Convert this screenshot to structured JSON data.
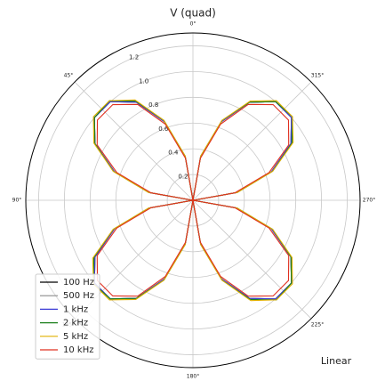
{
  "chart_data": {
    "type": "polar",
    "title": "V (quad)",
    "annotation": "Linear",
    "x": [
      0,
      10,
      20,
      30,
      40,
      50,
      60,
      70,
      80,
      90,
      100,
      110,
      120,
      130,
      140,
      150,
      160,
      170,
      180,
      190,
      200,
      210,
      220,
      230,
      240,
      250,
      260,
      270,
      280,
      290,
      300,
      310,
      320,
      330,
      340,
      350
    ],
    "rlim": [
      0,
      1.3
    ],
    "rticks": [
      0.2,
      0.4,
      0.6,
      0.8,
      {
        "value": 1,
        "label": "1.0"
      },
      1.2
    ],
    "thetaticks": [
      {
        "value": 0,
        "label": "0°"
      },
      {
        "value": 45,
        "label": "45°"
      },
      {
        "value": 90,
        "label": "90°"
      },
      {
        "value": 135,
        "label": "135°"
      },
      {
        "value": 180,
        "label": "180°"
      },
      {
        "value": 225,
        "label": "225°"
      },
      {
        "value": 270,
        "label": "270°"
      },
      {
        "value": 315,
        "label": "315°"
      }
    ],
    "grid": true,
    "legend": "lower left",
    "series": [
      {
        "name": "100 Hz",
        "color": "#000000",
        "values": [
          0,
          0.34,
          0.65,
          0.88,
          1.0,
          1.0,
          0.88,
          0.65,
          0.34,
          0,
          0.34,
          0.65,
          0.88,
          1.0,
          1.0,
          0.88,
          0.65,
          0.34,
          0,
          0.34,
          0.65,
          0.88,
          1.0,
          1.0,
          0.88,
          0.65,
          0.34,
          0,
          0.34,
          0.65,
          0.88,
          1.0,
          1.0,
          0.88,
          0.65,
          0.34
        ]
      },
      {
        "name": "500 Hz",
        "color": "#8c8c8c",
        "values": [
          0,
          0.34,
          0.65,
          0.88,
          1.0,
          1.0,
          0.88,
          0.65,
          0.34,
          0,
          0.34,
          0.65,
          0.88,
          1.0,
          1.0,
          0.88,
          0.65,
          0.34,
          0,
          0.34,
          0.65,
          0.88,
          1.0,
          1.0,
          0.88,
          0.65,
          0.34,
          0,
          0.34,
          0.65,
          0.88,
          1.0,
          1.0,
          0.88,
          0.65,
          0.34
        ]
      },
      {
        "name": "1 kHz",
        "color": "#3b3bd6",
        "values": [
          0,
          0.34,
          0.65,
          0.88,
          1.0,
          1.0,
          0.88,
          0.65,
          0.34,
          0,
          0.34,
          0.65,
          0.88,
          1.0,
          1.0,
          0.88,
          0.65,
          0.34,
          0,
          0.34,
          0.65,
          0.88,
          1.0,
          1.0,
          0.88,
          0.65,
          0.34,
          0,
          0.34,
          0.65,
          0.88,
          1.0,
          1.0,
          0.88,
          0.65,
          0.34
        ]
      },
      {
        "name": "2 kHz",
        "color": "#1a7f1a",
        "values": [
          0,
          0.35,
          0.66,
          0.89,
          1.01,
          1.0,
          0.88,
          0.66,
          0.35,
          0,
          0.35,
          0.66,
          0.89,
          1.01,
          1.0,
          0.88,
          0.66,
          0.35,
          0,
          0.35,
          0.66,
          0.89,
          1.01,
          1.0,
          0.88,
          0.66,
          0.35,
          0,
          0.35,
          0.66,
          0.89,
          1.01,
          1.0,
          0.88,
          0.66,
          0.35
        ]
      },
      {
        "name": "5 kHz",
        "color": "#e0b000",
        "values": [
          0,
          0.35,
          0.66,
          0.9,
          1.01,
          1.01,
          0.89,
          0.66,
          0.35,
          0,
          0.35,
          0.66,
          0.9,
          1.01,
          1.01,
          0.89,
          0.66,
          0.35,
          0,
          0.35,
          0.66,
          0.9,
          1.01,
          1.01,
          0.89,
          0.66,
          0.35,
          0,
          0.35,
          0.66,
          0.9,
          1.01,
          1.01,
          0.89,
          0.66,
          0.35
        ]
      },
      {
        "name": "10 kHz",
        "color": "#e03020",
        "values": [
          0,
          0.33,
          0.63,
          0.86,
          0.97,
          0.97,
          0.86,
          0.63,
          0.33,
          0,
          0.33,
          0.63,
          0.86,
          0.97,
          0.97,
          0.86,
          0.63,
          0.33,
          0,
          0.33,
          0.63,
          0.86,
          0.97,
          0.97,
          0.86,
          0.63,
          0.33,
          0,
          0.33,
          0.63,
          0.86,
          0.97,
          0.97,
          0.86,
          0.63,
          0.33
        ]
      }
    ]
  }
}
